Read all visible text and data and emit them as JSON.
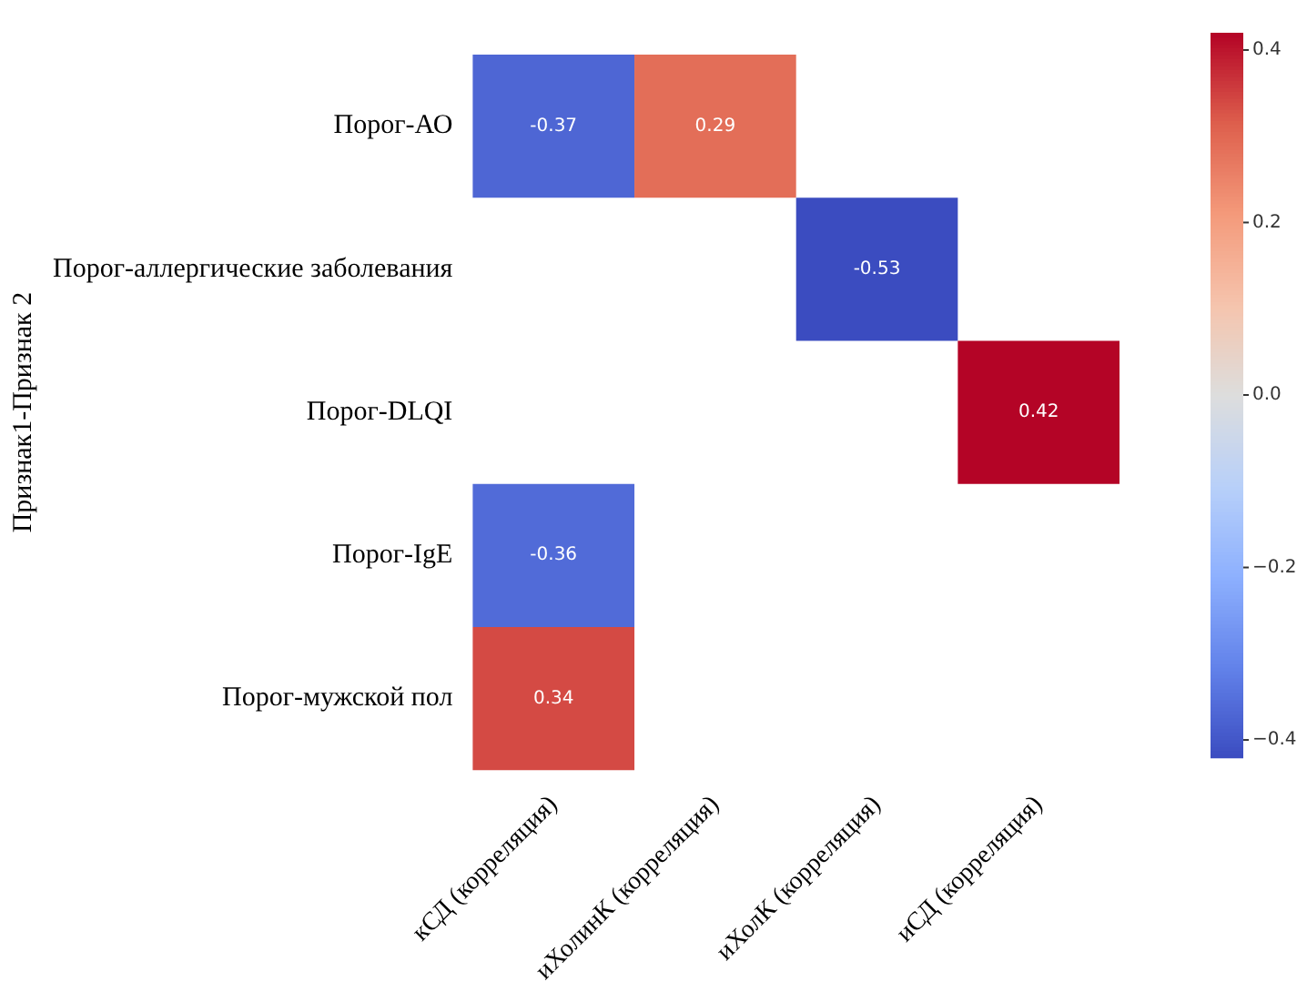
{
  "chart_data": {
    "type": "heatmap",
    "ylabel": "Признак1-Признак 2",
    "categories": [
      "кСД (корреляция)",
      "иХолинК (корреляция)",
      "иХолК (корреляция)",
      "иСД (корреляция)"
    ],
    "y_categories": [
      "Порог-АО",
      "Порог-аллергические заболевания",
      "Порог-DLQI",
      "Порог-IgE",
      "Порог-мужской пол"
    ],
    "cells": [
      [
        -0.37,
        0.29,
        null,
        null
      ],
      [
        null,
        null,
        -0.53,
        null
      ],
      [
        null,
        null,
        null,
        0.42
      ],
      [
        -0.36,
        null,
        null,
        null
      ],
      [
        0.34,
        null,
        null,
        null
      ]
    ],
    "data_labels": true,
    "clim": [
      -0.42,
      0.42
    ],
    "cticks": [
      {
        "value": -0.4,
        "label": "−0.4"
      },
      {
        "value": -0.2,
        "label": "−0.2"
      },
      {
        "value": 0,
        "label": "0.0"
      },
      0.2,
      0.4
    ]
  }
}
